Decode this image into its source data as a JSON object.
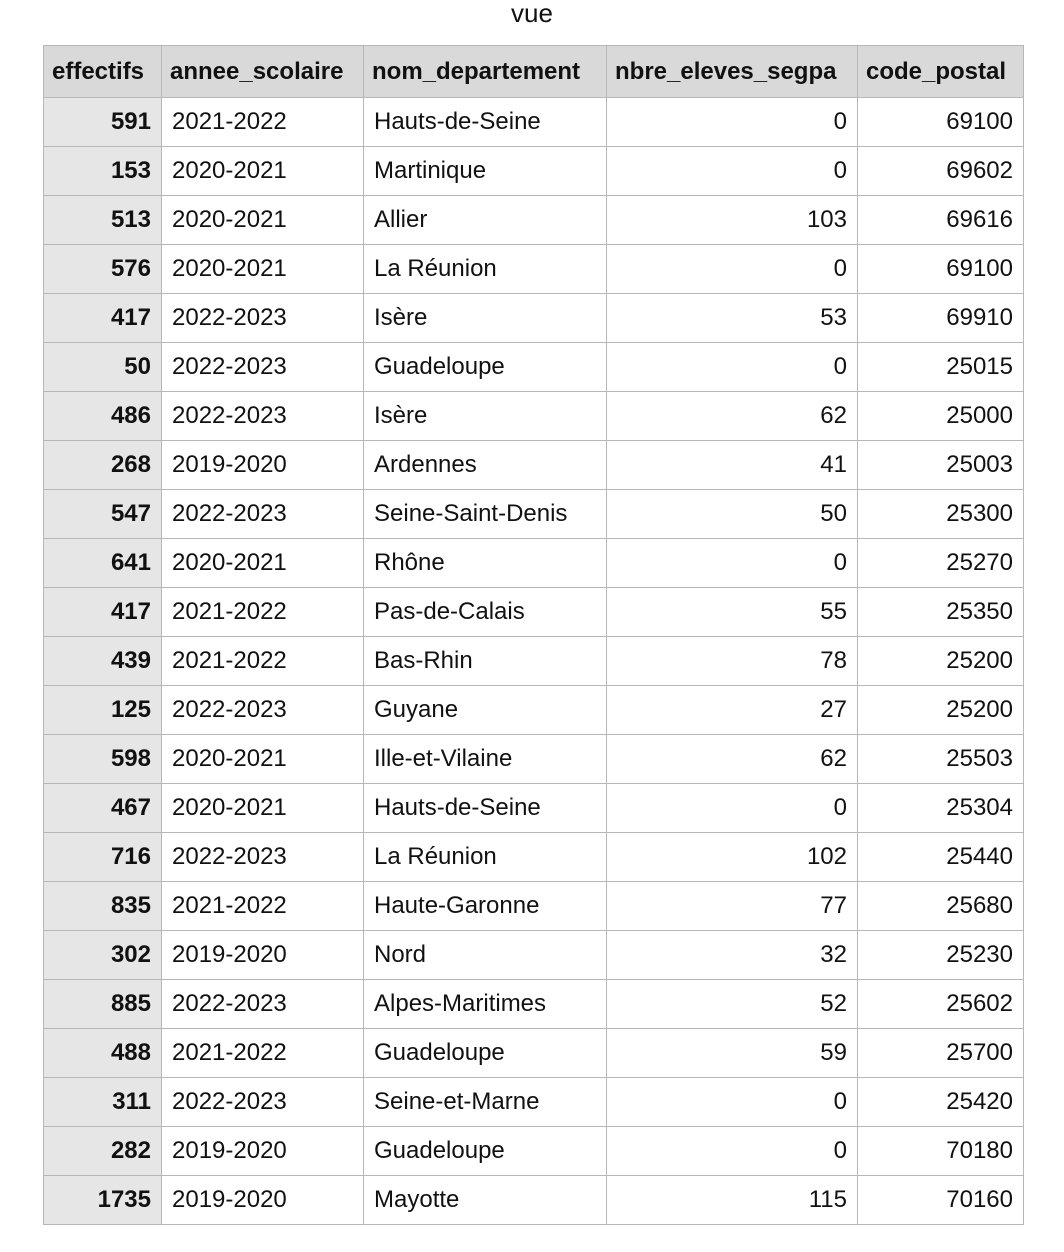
{
  "sheet": {
    "title": "vue"
  },
  "table": {
    "columns": [
      "effectifs",
      "annee_scolaire",
      "nom_departement",
      "nbre_eleves_segpa",
      "code_postal"
    ],
    "rows": [
      [
        "591",
        "2021-2022",
        "Hauts-de-Seine",
        "0",
        "69100"
      ],
      [
        "153",
        "2020-2021",
        "Martinique",
        "0",
        "69602"
      ],
      [
        "513",
        "2020-2021",
        "Allier",
        "103",
        "69616"
      ],
      [
        "576",
        "2020-2021",
        "La Réunion",
        "0",
        "69100"
      ],
      [
        "417",
        "2022-2023",
        "Isère",
        "53",
        "69910"
      ],
      [
        "50",
        "2022-2023",
        "Guadeloupe",
        "0",
        "25015"
      ],
      [
        "486",
        "2022-2023",
        "Isère",
        "62",
        "25000"
      ],
      [
        "268",
        "2019-2020",
        "Ardennes",
        "41",
        "25003"
      ],
      [
        "547",
        "2022-2023",
        "Seine-Saint-Denis",
        "50",
        "25300"
      ],
      [
        "641",
        "2020-2021",
        "Rhône",
        "0",
        "25270"
      ],
      [
        "417",
        "2021-2022",
        "Pas-de-Calais",
        "55",
        "25350"
      ],
      [
        "439",
        "2021-2022",
        "Bas-Rhin",
        "78",
        "25200"
      ],
      [
        "125",
        "2022-2023",
        "Guyane",
        "27",
        "25200"
      ],
      [
        "598",
        "2020-2021",
        "Ille-et-Vilaine",
        "62",
        "25503"
      ],
      [
        "467",
        "2020-2021",
        "Hauts-de-Seine",
        "0",
        "25304"
      ],
      [
        "716",
        "2022-2023",
        "La Réunion",
        "102",
        "25440"
      ],
      [
        "835",
        "2021-2022",
        "Haute-Garonne",
        "77",
        "25680"
      ],
      [
        "302",
        "2019-2020",
        "Nord",
        "32",
        "25230"
      ],
      [
        "885",
        "2022-2023",
        "Alpes-Maritimes",
        "52",
        "25602"
      ],
      [
        "488",
        "2021-2022",
        "Guadeloupe",
        "59",
        "25700"
      ],
      [
        "311",
        "2022-2023",
        "Seine-et-Marne",
        "0",
        "25420"
      ],
      [
        "282",
        "2019-2020",
        "Guadeloupe",
        "0",
        "70180"
      ],
      [
        "1735",
        "2019-2020",
        "Mayotte",
        "115",
        "70160"
      ]
    ]
  }
}
